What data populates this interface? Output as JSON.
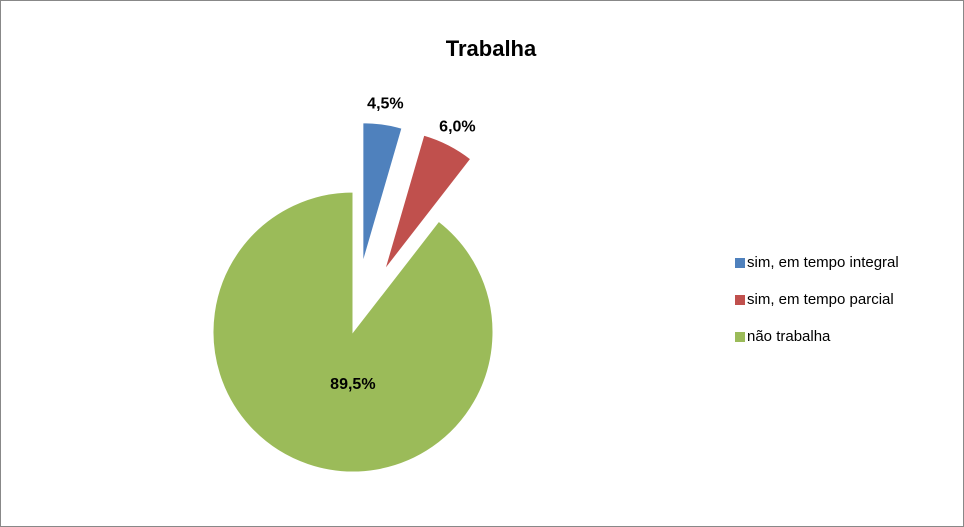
{
  "chart_data": {
    "type": "pie",
    "title": "Trabalha",
    "categories": [
      "sim, em tempo integral",
      "sim, em tempo parcial",
      "não trabalha"
    ],
    "values": [
      4.5,
      6.0,
      89.5
    ],
    "value_labels": [
      "4,5%",
      "6,0%",
      "89,5%"
    ],
    "colors": [
      "#4f81bd",
      "#c0504d",
      "#9bbb59"
    ],
    "explode": [
      true,
      true,
      false
    ],
    "legend": "right"
  }
}
